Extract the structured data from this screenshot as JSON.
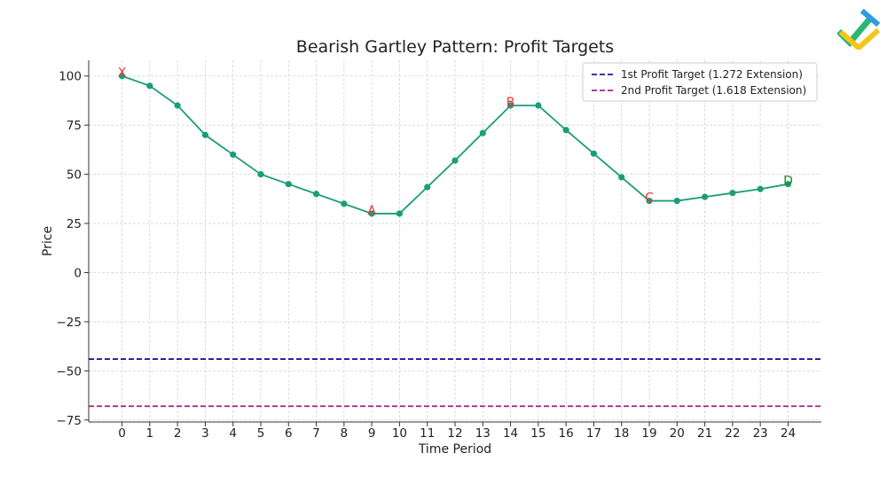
{
  "chart_data": {
    "type": "line",
    "title": "Bearish Gartley Pattern: Profit Targets",
    "xlabel": "Time Period",
    "ylabel": "Price",
    "xlim": [
      -1.2,
      25.2
    ],
    "ylim": [
      -76,
      108
    ],
    "x_ticks": [
      0,
      1,
      2,
      3,
      4,
      5,
      6,
      7,
      8,
      9,
      10,
      11,
      12,
      13,
      14,
      15,
      16,
      17,
      18,
      19,
      20,
      21,
      22,
      23,
      24
    ],
    "y_ticks": [
      100,
      75,
      50,
      25,
      0,
      -25,
      -50,
      -75
    ],
    "y_tick_labels": [
      "100",
      "75",
      "50",
      "25",
      "0",
      "−25",
      "−50",
      "−75"
    ],
    "grid": true,
    "legend_position": "top-right",
    "series": [
      {
        "x": [
          0,
          1,
          2,
          3,
          4,
          5,
          6,
          7,
          8,
          9,
          10,
          11,
          12,
          13,
          14,
          15,
          16,
          17,
          18,
          19,
          20,
          21,
          22,
          23,
          24
        ],
        "values": [
          100,
          95,
          85,
          70,
          60,
          50,
          45,
          40,
          35,
          30,
          30,
          43.5,
          57,
          71,
          85,
          85,
          72.5,
          60.5,
          48.5,
          36.5,
          36.5,
          38.5,
          40.5,
          42.5,
          45
        ],
        "color": "#1a9e77"
      }
    ],
    "pattern_points": [
      {
        "label": "X",
        "x": 0,
        "y": 100,
        "color": "#ee3333"
      },
      {
        "label": "A",
        "x": 9,
        "y": 30,
        "color": "#ee3333"
      },
      {
        "label": "B",
        "x": 14,
        "y": 85,
        "color": "#ee3333"
      },
      {
        "label": "C",
        "x": 19,
        "y": 36.5,
        "color": "#ee3333"
      },
      {
        "label": "D",
        "x": 24,
        "y": 45,
        "color": "#1e8a1e"
      }
    ],
    "hlines": [
      {
        "name": "1st Profit Target (1.272 Extension)",
        "y": -44,
        "color": "#1a1aa6"
      },
      {
        "name": "2nd Profit Target (1.618 Extension)",
        "y": -68,
        "color": "#a0208e"
      }
    ]
  },
  "logo": {
    "icon": "brand-logo-icon",
    "colors": [
      "#2bb673",
      "#f5c518",
      "#2f9be0"
    ]
  }
}
